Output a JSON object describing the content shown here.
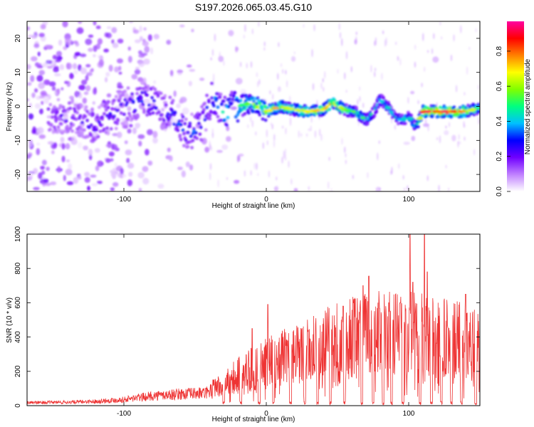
{
  "title": "S197.2026.065.03.45.G10",
  "chart_data": [
    {
      "type": "heatmap",
      "xlabel": "Height of straight line (km)",
      "ylabel": "Frequency (Hz)",
      "xlim": [
        -168,
        150
      ],
      "ylim": [
        -25,
        25
      ],
      "xticks": [
        -100,
        0,
        100
      ],
      "xtick_labels": [
        "-100",
        "0",
        "100"
      ],
      "yticks": [
        -20,
        -10,
        0,
        10,
        20
      ],
      "ytick_labels": [
        "-20",
        "-10",
        "0",
        "10",
        "20"
      ],
      "colorbar": {
        "label": "Normalized spectral amplitude",
        "ticks": [
          0.0,
          0.2,
          0.4,
          0.6,
          0.8
        ],
        "tick_labels": [
          "0.0",
          "0.2",
          "0.4",
          "0.6",
          "0.8"
        ],
        "range": [
          0,
          0.97
        ],
        "colors": [
          "#ffffff",
          "#c080ff",
          "#7000ff",
          "#0000ff",
          "#00c0ff",
          "#00ff80",
          "#80ff00",
          "#ffff00",
          "#ff8000",
          "#ff0000",
          "#ff00a0"
        ]
      },
      "ridge": {
        "x": [
          -150,
          -135,
          -120,
          -100,
          -85,
          -75,
          -65,
          -55,
          -45,
          -38,
          -30,
          -20,
          -10,
          0,
          10,
          20,
          30,
          40,
          47,
          55,
          62,
          70,
          75,
          80,
          85,
          90,
          95,
          100,
          105,
          110,
          120,
          130,
          140,
          150
        ],
        "y": [
          -3,
          -3,
          -6,
          0,
          2,
          0,
          -3,
          -8,
          -5,
          3,
          -2,
          0,
          1,
          -1.5,
          0,
          -1,
          -1.5,
          -1,
          1,
          -1,
          -1.5,
          -4,
          -2,
          2,
          0,
          -3,
          -4,
          -3,
          -6,
          -1.5,
          -1.5,
          -1.5,
          -1.5,
          -0.5
        ],
        "strength": [
          0.25,
          0.25,
          0.28,
          0.3,
          0.35,
          0.35,
          0.35,
          0.35,
          0.35,
          0.4,
          0.45,
          0.55,
          0.6,
          0.7,
          0.75,
          0.7,
          0.7,
          0.75,
          0.85,
          0.65,
          0.55,
          0.55,
          0.5,
          0.5,
          0.45,
          0.45,
          0.45,
          0.45,
          0.45,
          0.9,
          0.95,
          0.9,
          0.85,
          0.5
        ]
      }
    },
    {
      "type": "line",
      "xlabel": "Height of straight line (km)",
      "ylabel": "SNR (10 * v/v)",
      "xlim": [
        -168,
        150
      ],
      "ylim": [
        0,
        1000
      ],
      "xticks": [
        -100,
        0,
        100
      ],
      "xtick_labels": [
        "-100",
        "0",
        "100"
      ],
      "yticks": [
        0,
        200,
        400,
        600,
        800,
        1000
      ],
      "ytick_labels": [
        "0",
        "200",
        "400",
        "600",
        "800",
        "1000"
      ],
      "color": "#ee3333",
      "envelope": {
        "x": [
          -168,
          -140,
          -120,
          -100,
          -80,
          -60,
          -40,
          -30,
          -20,
          -10,
          0,
          10,
          20,
          30,
          40,
          50,
          60,
          70,
          80,
          90,
          100,
          110,
          120,
          130,
          140,
          150
        ],
        "y": [
          25,
          28,
          35,
          50,
          80,
          95,
          105,
          140,
          210,
          250,
          280,
          320,
          330,
          360,
          400,
          430,
          450,
          470,
          480,
          470,
          480,
          460,
          450,
          430,
          420,
          380
        ]
      },
      "peaks": {
        "x": [
          -10,
          1,
          54,
          68,
          72,
          86,
          94,
          101,
          103,
          111,
          113,
          140
        ],
        "y": [
          450,
          590,
          580,
          700,
          755,
          600,
          600,
          1000,
          720,
          1000,
          780,
          650
        ]
      },
      "dropouts": [
        -30,
        -18,
        -5,
        5,
        17,
        27,
        36,
        45,
        55,
        67,
        75,
        82,
        88,
        96,
        108,
        116,
        123,
        130,
        137,
        147
      ]
    }
  ]
}
